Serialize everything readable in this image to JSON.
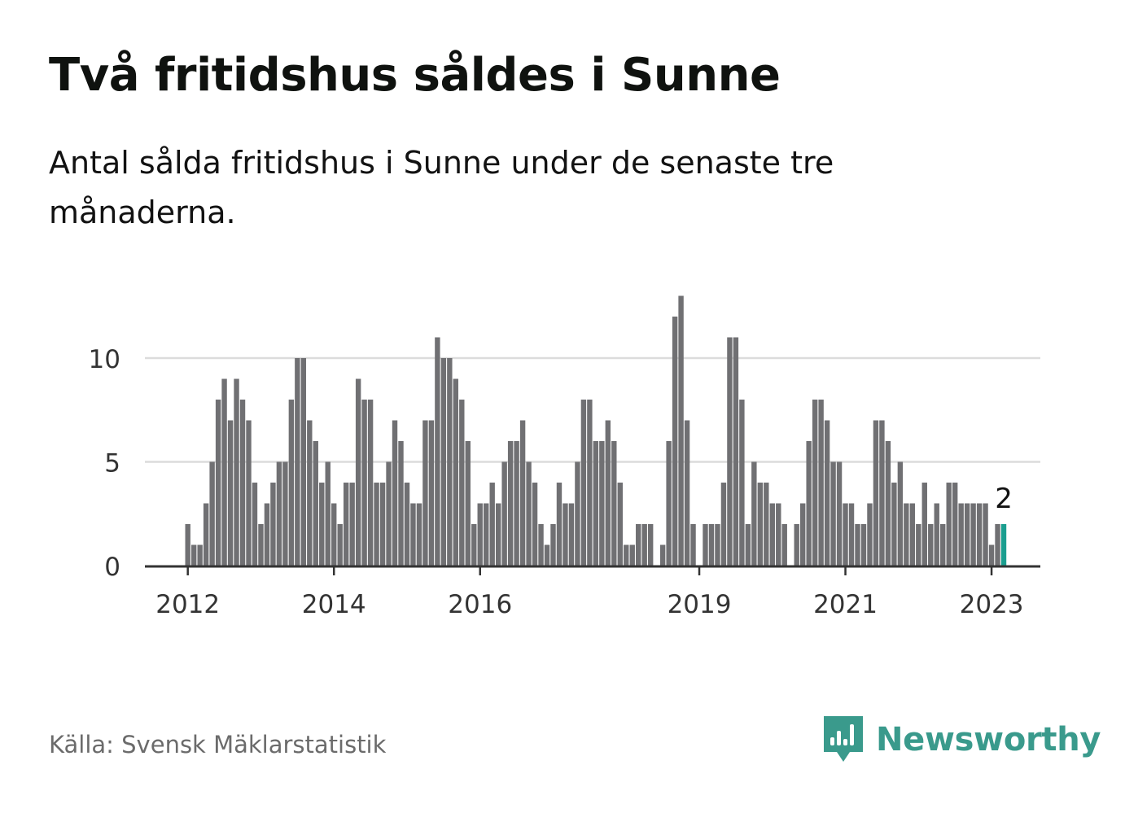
{
  "header": {
    "title": "Två fritidshus såldes i Sunne",
    "subtitle": "Antal sålda fritidshus i Sunne under de senaste tre månaderna."
  },
  "footer": {
    "source": "Källa: Svensk Mäklarstatistik",
    "brand": "Newsworthy",
    "brand_icon": "newsworthy-logo-icon"
  },
  "colors": {
    "bar": "#707073",
    "highlight": "#1a9e8f",
    "grid": "#dcdcdc",
    "axis": "#333333",
    "brand": "#3a9a8c"
  },
  "chart_data": {
    "type": "bar",
    "start_month": "2012-01",
    "values": [
      2,
      1,
      1,
      3,
      5,
      8,
      9,
      7,
      9,
      8,
      7,
      4,
      2,
      3,
      4,
      5,
      5,
      8,
      10,
      10,
      7,
      6,
      4,
      5,
      3,
      2,
      4,
      4,
      9,
      8,
      8,
      4,
      4,
      5,
      7,
      6,
      4,
      3,
      3,
      7,
      7,
      11,
      10,
      10,
      9,
      8,
      6,
      2,
      3,
      3,
      4,
      3,
      5,
      6,
      6,
      7,
      5,
      4,
      2,
      1,
      2,
      4,
      3,
      3,
      5,
      8,
      8,
      6,
      6,
      7,
      6,
      4,
      1,
      1,
      2,
      2,
      2,
      0,
      1,
      6,
      12,
      13,
      7,
      2,
      0,
      2,
      2,
      2,
      4,
      11,
      11,
      8,
      2,
      5,
      4,
      4,
      3,
      3,
      2,
      0,
      2,
      3,
      6,
      8,
      8,
      7,
      5,
      5,
      3,
      3,
      2,
      2,
      3,
      7,
      7,
      6,
      4,
      5,
      3,
      3,
      2,
      4,
      2,
      3,
      2,
      4,
      4,
      3,
      3,
      3,
      3,
      3,
      1,
      2,
      2
    ],
    "highlight_last": true,
    "value_label": "2",
    "yticks": [
      0,
      5,
      10
    ],
    "ylim": [
      0,
      13
    ],
    "xticks": [
      "2012",
      "2014",
      "2016",
      "2019",
      "2021",
      "2023"
    ],
    "grid": true
  }
}
